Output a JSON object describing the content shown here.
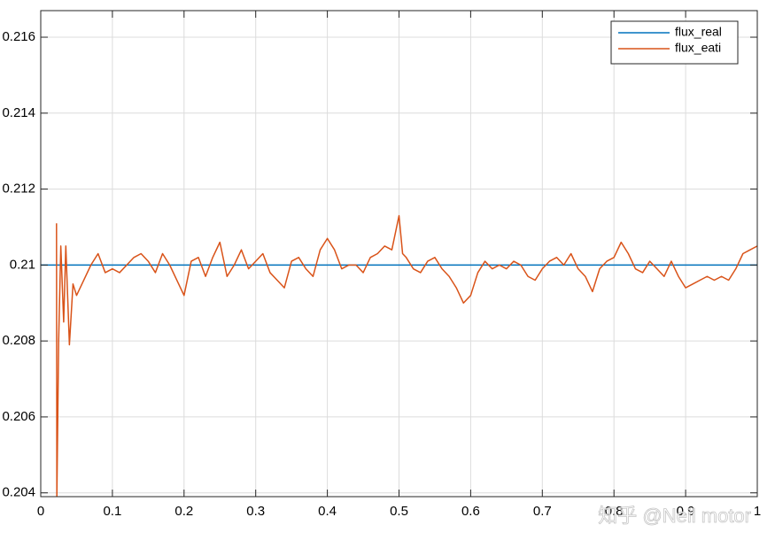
{
  "chart_data": {
    "type": "line",
    "xlim": [
      0,
      1
    ],
    "ylim": [
      0.2039,
      0.2167
    ],
    "xticks": [
      0,
      0.1,
      0.2,
      0.3,
      0.4,
      0.5,
      0.6,
      0.7,
      0.8,
      0.9,
      1
    ],
    "yticks": [
      0.204,
      0.206,
      0.208,
      0.21,
      0.212,
      0.214,
      0.216
    ],
    "grid": true,
    "legend": "upper right",
    "watermark": "知乎 @Neil motor",
    "series": [
      {
        "name": "flux_real",
        "color": "#0072BD",
        "x": [
          0,
          1
        ],
        "values": [
          0.21,
          0.21
        ]
      },
      {
        "name": "flux_eati",
        "color": "#D95319",
        "x": [
          0.022,
          0.0225,
          0.025,
          0.028,
          0.032,
          0.035,
          0.04,
          0.045,
          0.05,
          0.06,
          0.07,
          0.08,
          0.09,
          0.1,
          0.11,
          0.12,
          0.13,
          0.14,
          0.15,
          0.16,
          0.17,
          0.18,
          0.19,
          0.2,
          0.21,
          0.22,
          0.23,
          0.24,
          0.25,
          0.26,
          0.27,
          0.28,
          0.29,
          0.3,
          0.31,
          0.32,
          0.33,
          0.34,
          0.35,
          0.36,
          0.37,
          0.38,
          0.39,
          0.4,
          0.41,
          0.42,
          0.43,
          0.44,
          0.45,
          0.46,
          0.47,
          0.48,
          0.49,
          0.5,
          0.505,
          0.51,
          0.52,
          0.53,
          0.54,
          0.55,
          0.56,
          0.57,
          0.58,
          0.59,
          0.6,
          0.61,
          0.62,
          0.63,
          0.64,
          0.65,
          0.66,
          0.67,
          0.68,
          0.69,
          0.7,
          0.71,
          0.72,
          0.73,
          0.74,
          0.75,
          0.76,
          0.77,
          0.78,
          0.79,
          0.8,
          0.81,
          0.82,
          0.83,
          0.84,
          0.85,
          0.86,
          0.87,
          0.88,
          0.89,
          0.9,
          0.91,
          0.92,
          0.93,
          0.94,
          0.95,
          0.96,
          0.97,
          0.98,
          0.99,
          1
        ],
        "values": [
          0.2111,
          0.2039,
          0.208,
          0.2105,
          0.2085,
          0.2105,
          0.2079,
          0.2095,
          0.2092,
          0.2096,
          0.21,
          0.2103,
          0.2098,
          0.2099,
          0.2098,
          0.21,
          0.2102,
          0.2103,
          0.2101,
          0.2098,
          0.2103,
          0.21,
          0.2096,
          0.2092,
          0.2101,
          0.2102,
          0.2097,
          0.2102,
          0.2106,
          0.2097,
          0.21,
          0.2104,
          0.2099,
          0.2101,
          0.2103,
          0.2098,
          0.2096,
          0.2094,
          0.2101,
          0.2102,
          0.2099,
          0.2097,
          0.2104,
          0.2107,
          0.2104,
          0.2099,
          0.21,
          0.21,
          0.2098,
          0.2102,
          0.2103,
          0.2105,
          0.2104,
          0.2113,
          0.2103,
          0.2102,
          0.2099,
          0.2098,
          0.2101,
          0.2102,
          0.2099,
          0.2097,
          0.2094,
          0.209,
          0.2092,
          0.2098,
          0.2101,
          0.2099,
          0.21,
          0.2099,
          0.2101,
          0.21,
          0.2097,
          0.2096,
          0.2099,
          0.2101,
          0.2102,
          0.21,
          0.2103,
          0.2099,
          0.2097,
          0.2093,
          0.2099,
          0.2101,
          0.2102,
          0.2106,
          0.2103,
          0.2099,
          0.2098,
          0.2101,
          0.2099,
          0.2097,
          0.2101,
          0.2097,
          0.2094,
          0.2095,
          0.2096,
          0.2097,
          0.2096,
          0.2097,
          0.2096,
          0.2099,
          0.2103,
          0.2104,
          0.2105
        ]
      }
    ]
  }
}
